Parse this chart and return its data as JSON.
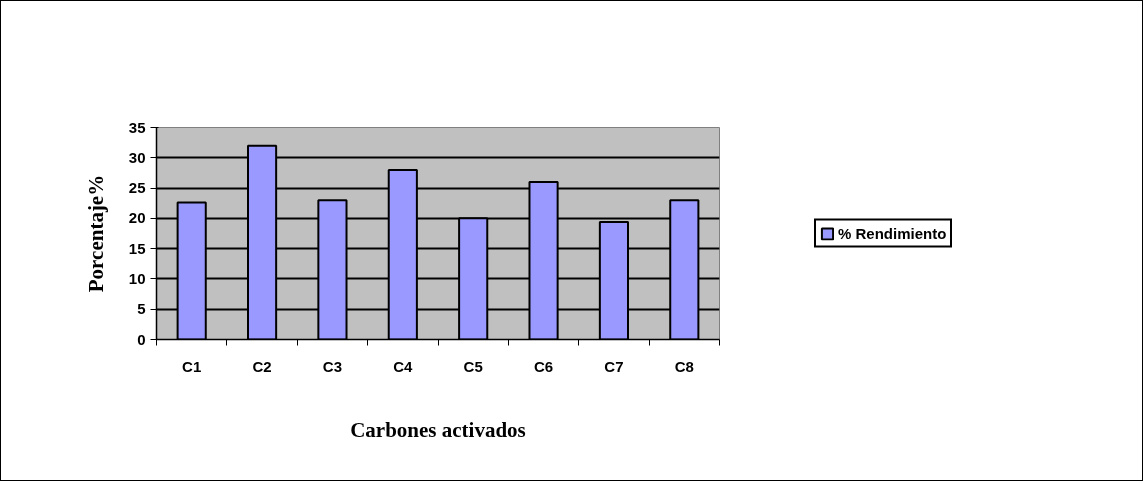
{
  "chart_data": {
    "type": "bar",
    "xlabel": "Carbones activados",
    "ylabel": "Porcentaje%",
    "categories": [
      "C1",
      "C2",
      "C3",
      "C4",
      "C5",
      "C6",
      "C7",
      "C8"
    ],
    "series": [
      {
        "name": "% Rendimiento",
        "color": "#9999ff",
        "values": [
          22.6,
          32,
          23,
          28,
          20,
          26,
          19.4,
          23
        ]
      }
    ],
    "ylim": [
      0,
      35
    ],
    "yticks": [
      0,
      5,
      10,
      15,
      20,
      25,
      30,
      35
    ],
    "grid": "y",
    "legend": "right"
  }
}
